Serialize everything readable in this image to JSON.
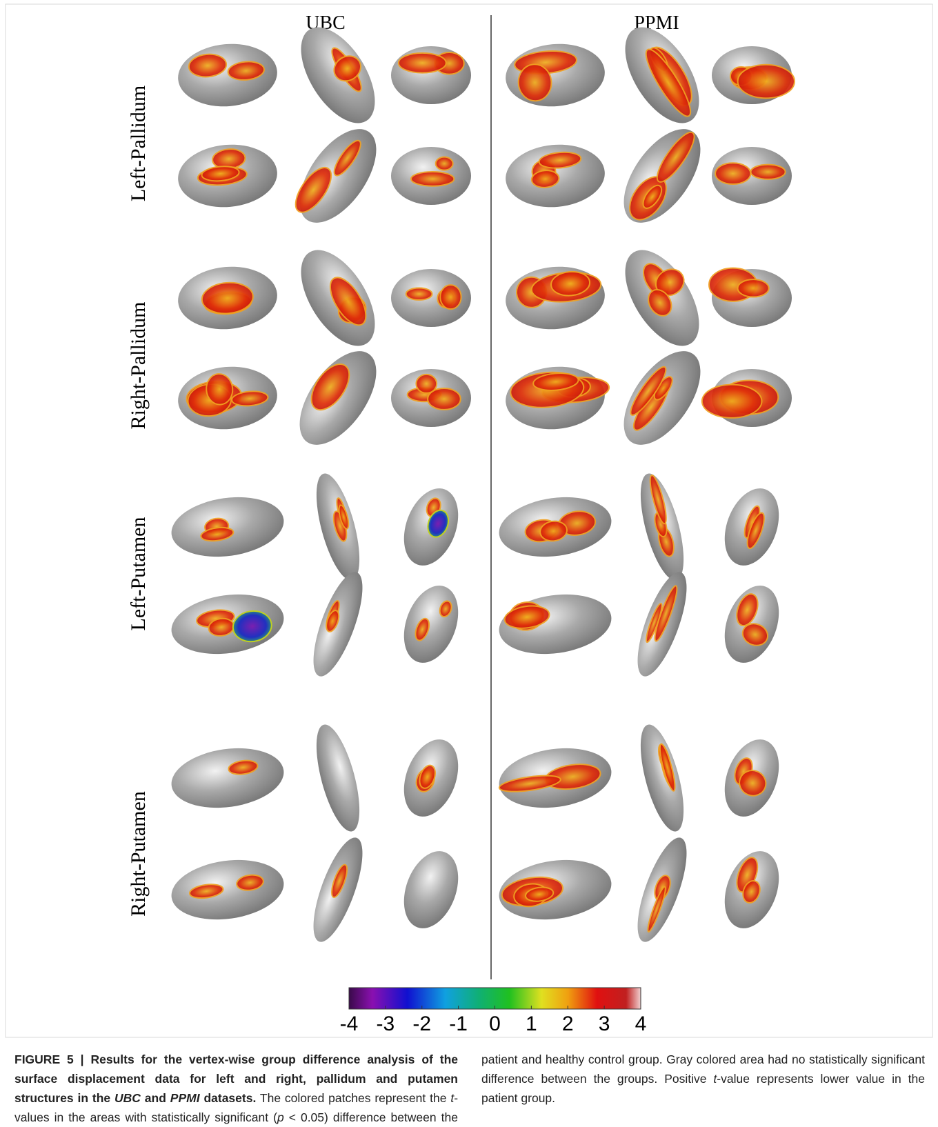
{
  "header": {
    "columns": [
      "UBC",
      "PPMI"
    ]
  },
  "rows": [
    "Left-Pallidum",
    "Right-Pallidum",
    "Left-Putamen",
    "Right-Putamen"
  ],
  "colorbar": {
    "lim": [
      -4,
      4
    ],
    "ticks": [
      -4,
      -3,
      -2,
      -1,
      0,
      1,
      2,
      3,
      4
    ]
  },
  "caption": {
    "label": "FIGURE 5 |",
    "title": [
      "Results for the vertex-wise group difference analysis of the surface displacement data for left and right, pallidum and putamen structures in the ",
      "UBC",
      " and ",
      "PPMI",
      " datasets."
    ],
    "body": [
      "The colored patches represent the ",
      "t",
      "-values in the areas with statistically significant (",
      "p",
      " < 0.05) difference between the patient and healthy control group. Gray colored area had no statistically significant difference between the groups. Positive ",
      "t",
      "-value represents lower value in the patient group."
    ]
  }
}
